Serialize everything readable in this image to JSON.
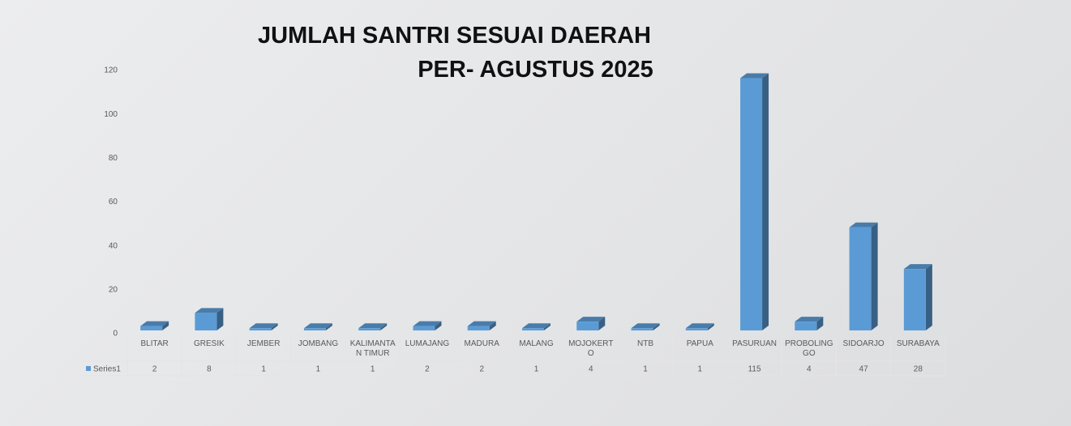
{
  "chart_data": {
    "type": "bar3d",
    "title": [
      "JUMLAH SANTRI SESUAI DAERAH",
      "PER- AGUSTUS 2025"
    ],
    "categories": [
      "BLITAR",
      "GRESIK",
      "JEMBER",
      "JOMBANG",
      "KALIMANTAN TIMUR",
      "LUMAJANG",
      "MADURA",
      "MALANG",
      "MOJOKERTO",
      "NTB",
      "PAPUA",
      "PASURUAN",
      "PROBOLINGGO",
      "SIDOARJO",
      "SURABAYA"
    ],
    "series": [
      {
        "name": "Series1",
        "color": "#5b9bd5",
        "values": [
          2,
          8,
          1,
          1,
          1,
          2,
          2,
          1,
          4,
          1,
          1,
          115,
          4,
          47,
          28
        ]
      }
    ],
    "ylim": [
      0,
      120
    ],
    "yticks": [
      0,
      20,
      40,
      60,
      80,
      100,
      120
    ],
    "grid": false,
    "data_table": true
  }
}
